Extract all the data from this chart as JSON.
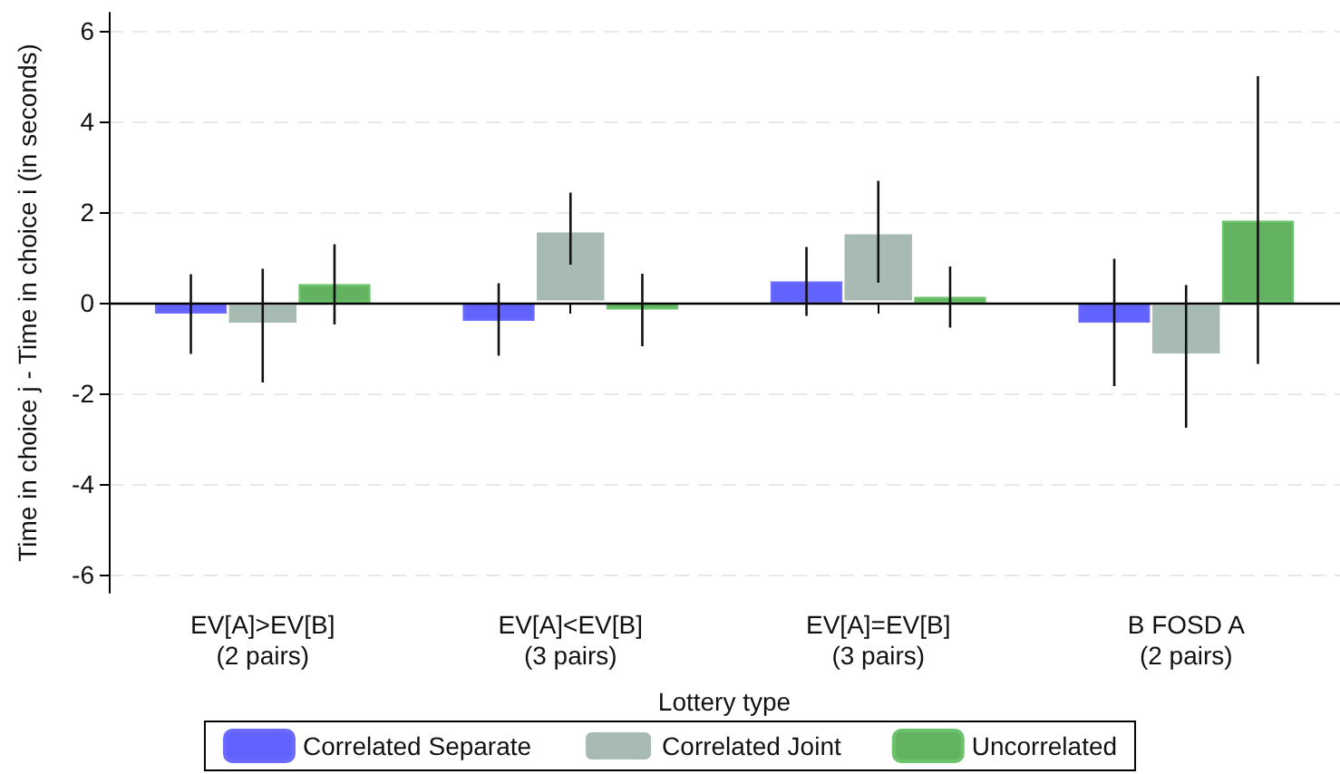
{
  "chart_data": {
    "type": "bar",
    "xlabel": "Lottery type",
    "ylabel": "Time in choice j - Time in choice i (in seconds)",
    "categories": [
      "EV[A]>EV[B]\n(2 pairs)",
      "EV[A]<EV[B]\n(3 pairs)",
      "EV[A]=EV[B]\n(3 pairs)",
      "B FOSD A\n(2 pairs)"
    ],
    "series": [
      {
        "name": "Correlated Separate",
        "color": "#6262ff",
        "values": [
          -0.24,
          -0.4,
          0.47,
          -0.44
        ],
        "errors": [
          [
            -1.13,
            0.63
          ],
          [
            -1.17,
            0.43
          ],
          [
            -0.29,
            1.23
          ],
          [
            -1.84,
            0.97
          ]
        ]
      },
      {
        "name": "Correlated Joint",
        "color": "#a8bbb3",
        "values": [
          -0.49,
          1.6,
          1.56,
          -1.17
        ],
        "errors": [
          [
            -1.76,
            0.75
          ],
          [
            0.84,
            2.43
          ],
          [
            0.44,
            2.69
          ],
          [
            -2.76,
            0.39
          ]
        ]
      },
      {
        "name": "Uncorrelated",
        "color": "#62b262",
        "values": [
          0.41,
          -0.15,
          0.13,
          1.81
        ],
        "errors": [
          [
            -0.48,
            1.29
          ],
          [
            -0.96,
            0.64
          ],
          [
            -0.55,
            0.8
          ],
          [
            -1.35,
            5.0
          ]
        ]
      }
    ],
    "ylim": [
      -6.4,
      6.4
    ],
    "yticks": [
      -6,
      -4,
      -2,
      0,
      2,
      4,
      6
    ],
    "grid": "y",
    "legend": "bottom",
    "ref_lines": [
      {
        "axis": "y",
        "value": 0,
        "color": "#000000"
      }
    ]
  }
}
